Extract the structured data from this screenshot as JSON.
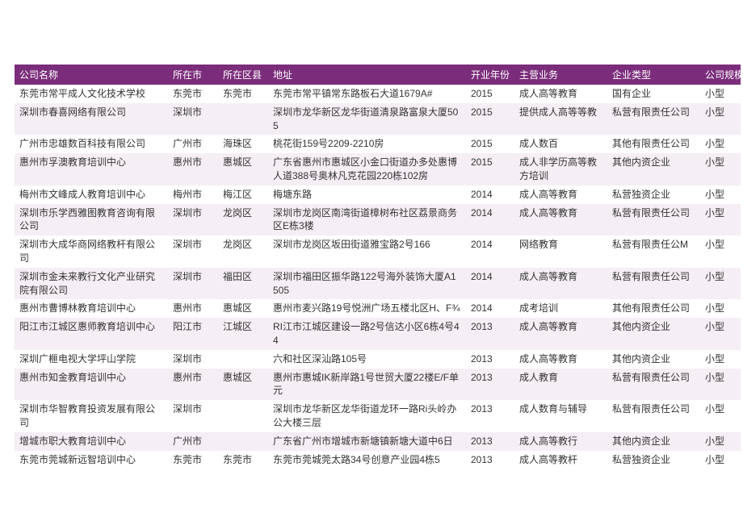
{
  "header_bg": "#7b2d7b",
  "header_fg": "#ffffff",
  "row_alt_bg": "#f5eef5",
  "columns": [
    "公司名称",
    "所在市",
    "所在区县",
    "地址",
    "开业年份",
    "主营业务",
    "企业类型",
    "公司规模"
  ],
  "rows": [
    {
      "name": "东莞市常平成人文化技术学校",
      "city": "东莞市",
      "district": "东莞市",
      "address": "东莞市常平镇常东路板石大道1679A#",
      "year": "2015",
      "business": "成人高等教育",
      "type": "国有企业",
      "size": "小型"
    },
    {
      "name": "深圳市春喜网络有限公司",
      "city": "深圳市",
      "district": "",
      "address": "深圳市龙华新区龙华街道清泉路富泉大厦505",
      "year": "2015",
      "business": "提供成人高等等教",
      "type": "私营有限责任公司",
      "size": "小型"
    },
    {
      "name": "广州市忠雄数百科技有限公司",
      "city": "广州市",
      "district": "海珠区",
      "address": "桃花街159号2209-2210房",
      "year": "2015",
      "business": "成人数百",
      "type": "其他有限责任公司",
      "size": "小型"
    },
    {
      "name": "惠州市孚澳教育培训中心",
      "city": "惠州市",
      "district": "惠城区",
      "address": "广东省惠州市惠城区小金口街道办多处惠博人道388号奥林凡克花园220栋102房",
      "year": "2015",
      "business": "成人非学历高等教方培训",
      "type": "其他内资企业",
      "size": "小型"
    },
    {
      "name": "梅州市文峰成人教育培训中心",
      "city": "梅州市",
      "district": "梅江区",
      "address": "梅塘东路",
      "year": "2014",
      "business": "成人高等教育",
      "type": "私营独资企业",
      "size": "小型"
    },
    {
      "name": "深圳市乐学西雅图教育咨询有限公司",
      "city": "深圳市",
      "district": "龙岗区",
      "address": "深圳市龙岗区南湾街道樟树布社区荔景商务区E栋3楼",
      "year": "2014",
      "business": "成人高等教育",
      "type": "私营有限责任公司",
      "size": "小型"
    },
    {
      "name": "深圳市大成华商网络教杆有限公司",
      "city": "深圳市",
      "district": "龙岗区",
      "address": "深圳市龙岗区坂田街道雅宝路2号166",
      "year": "2014",
      "business": "网络教育",
      "type": "私营有限责任公M",
      "size": "小型"
    },
    {
      "name": "深圳市金未来教行文化产业研究院有限公司",
      "city": "深圳市",
      "district": "福田区",
      "address": "深圳市福田区振华路122号海外装饰大厦A1505",
      "year": "2014",
      "business": "成人高等教育",
      "type": "私营有限责任公司",
      "size": "小型"
    },
    {
      "name": "惠州市曹博林教育培训中心",
      "city": "惠州市",
      "district": "惠城区",
      "address": "惠州市麦兴路19号悦洲广场五楼北区H、F¾",
      "year": "2014",
      "business": "成考培训",
      "type": "其他有限责任公司",
      "size": "小型"
    },
    {
      "name": "阳江市江城区惠师教育培训中心",
      "city": "阳江市",
      "district": "江城区",
      "address": "RI江市江城区建设一路2号信达小区6栋4号44",
      "year": "2013",
      "business": "成人高等教育",
      "type": "其他内资企业",
      "size": "小型"
    },
    {
      "name": "深圳广榧电视大学坪山学院",
      "city": "深圳市",
      "district": "",
      "address": "六和社区深汕路105号",
      "year": "2013",
      "business": "成人高等教育",
      "type": "其他内资企业",
      "size": "小型"
    },
    {
      "name": "惠州市知金教育培训中心",
      "city": "惠州市",
      "district": "惠城区",
      "address": "惠州市惠城IK新岸路1号世贸大厦22楼E/F单元",
      "year": "2013",
      "business": "成人教育",
      "type": "私营有限责任公司",
      "size": "小型"
    },
    {
      "name": "深圳市华智教育投资发展有限公司",
      "city": "深圳市",
      "district": "",
      "address": "深圳市龙华新区龙华街道龙环一路Ri头岭办公大楼三层",
      "year": "2013",
      "business": "成人数育与辅导",
      "type": "私营有限责任公司",
      "size": "小型"
    },
    {
      "name": "增城市职大教育培训中心",
      "city": "广州市",
      "district": "",
      "address": "广东省广州市增城市新塘镇新塘大道中6日",
      "year": "2013",
      "business": "成人高等教行",
      "type": "其他内资企业",
      "size": "小型"
    },
    {
      "name": "东莞市莞城新远智培训中心",
      "city": "东莞市",
      "district": "东莞市",
      "address": "东莞市莞城莞太路34号创意产业园4栋5",
      "year": "2013",
      "business": "成人高等教杆",
      "type": "私营独资企业",
      "size": "小型"
    }
  ]
}
